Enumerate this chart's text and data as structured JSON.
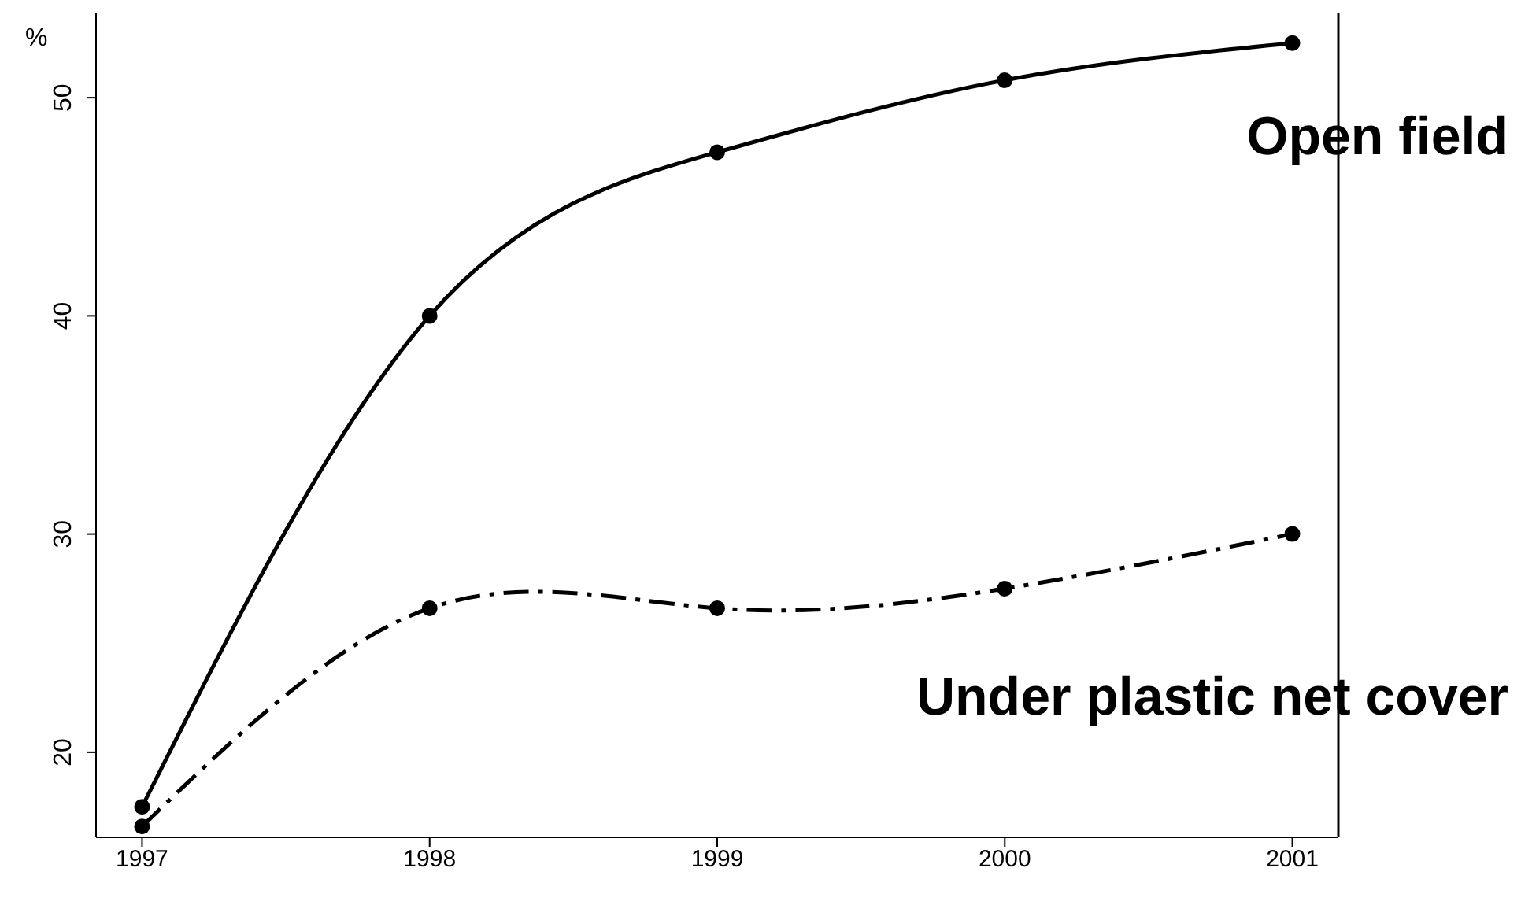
{
  "chart_data": {
    "type": "line",
    "ylabel": "%",
    "x": [
      1997,
      1998,
      1999,
      2000,
      2001
    ],
    "series": [
      {
        "name": "Open field",
        "color": "#000000",
        "line_style": "solid",
        "values": [
          17.5,
          40,
          47.5,
          50.8,
          52.5
        ]
      },
      {
        "name": "Under plastic net cover",
        "color": "#000000",
        "line_style": "dashdot",
        "values": [
          16.6,
          26.6,
          26.6,
          27.5,
          30
        ]
      }
    ],
    "xlim": [
      1996.84,
      2001.16
    ],
    "xticks": [
      1997,
      1998,
      1999,
      2000,
      2001
    ],
    "ylim": [
      16.1,
      53.9
    ],
    "yticks": [
      20,
      30,
      40,
      50
    ],
    "marker": "circle",
    "grid": false,
    "legend": false
  }
}
